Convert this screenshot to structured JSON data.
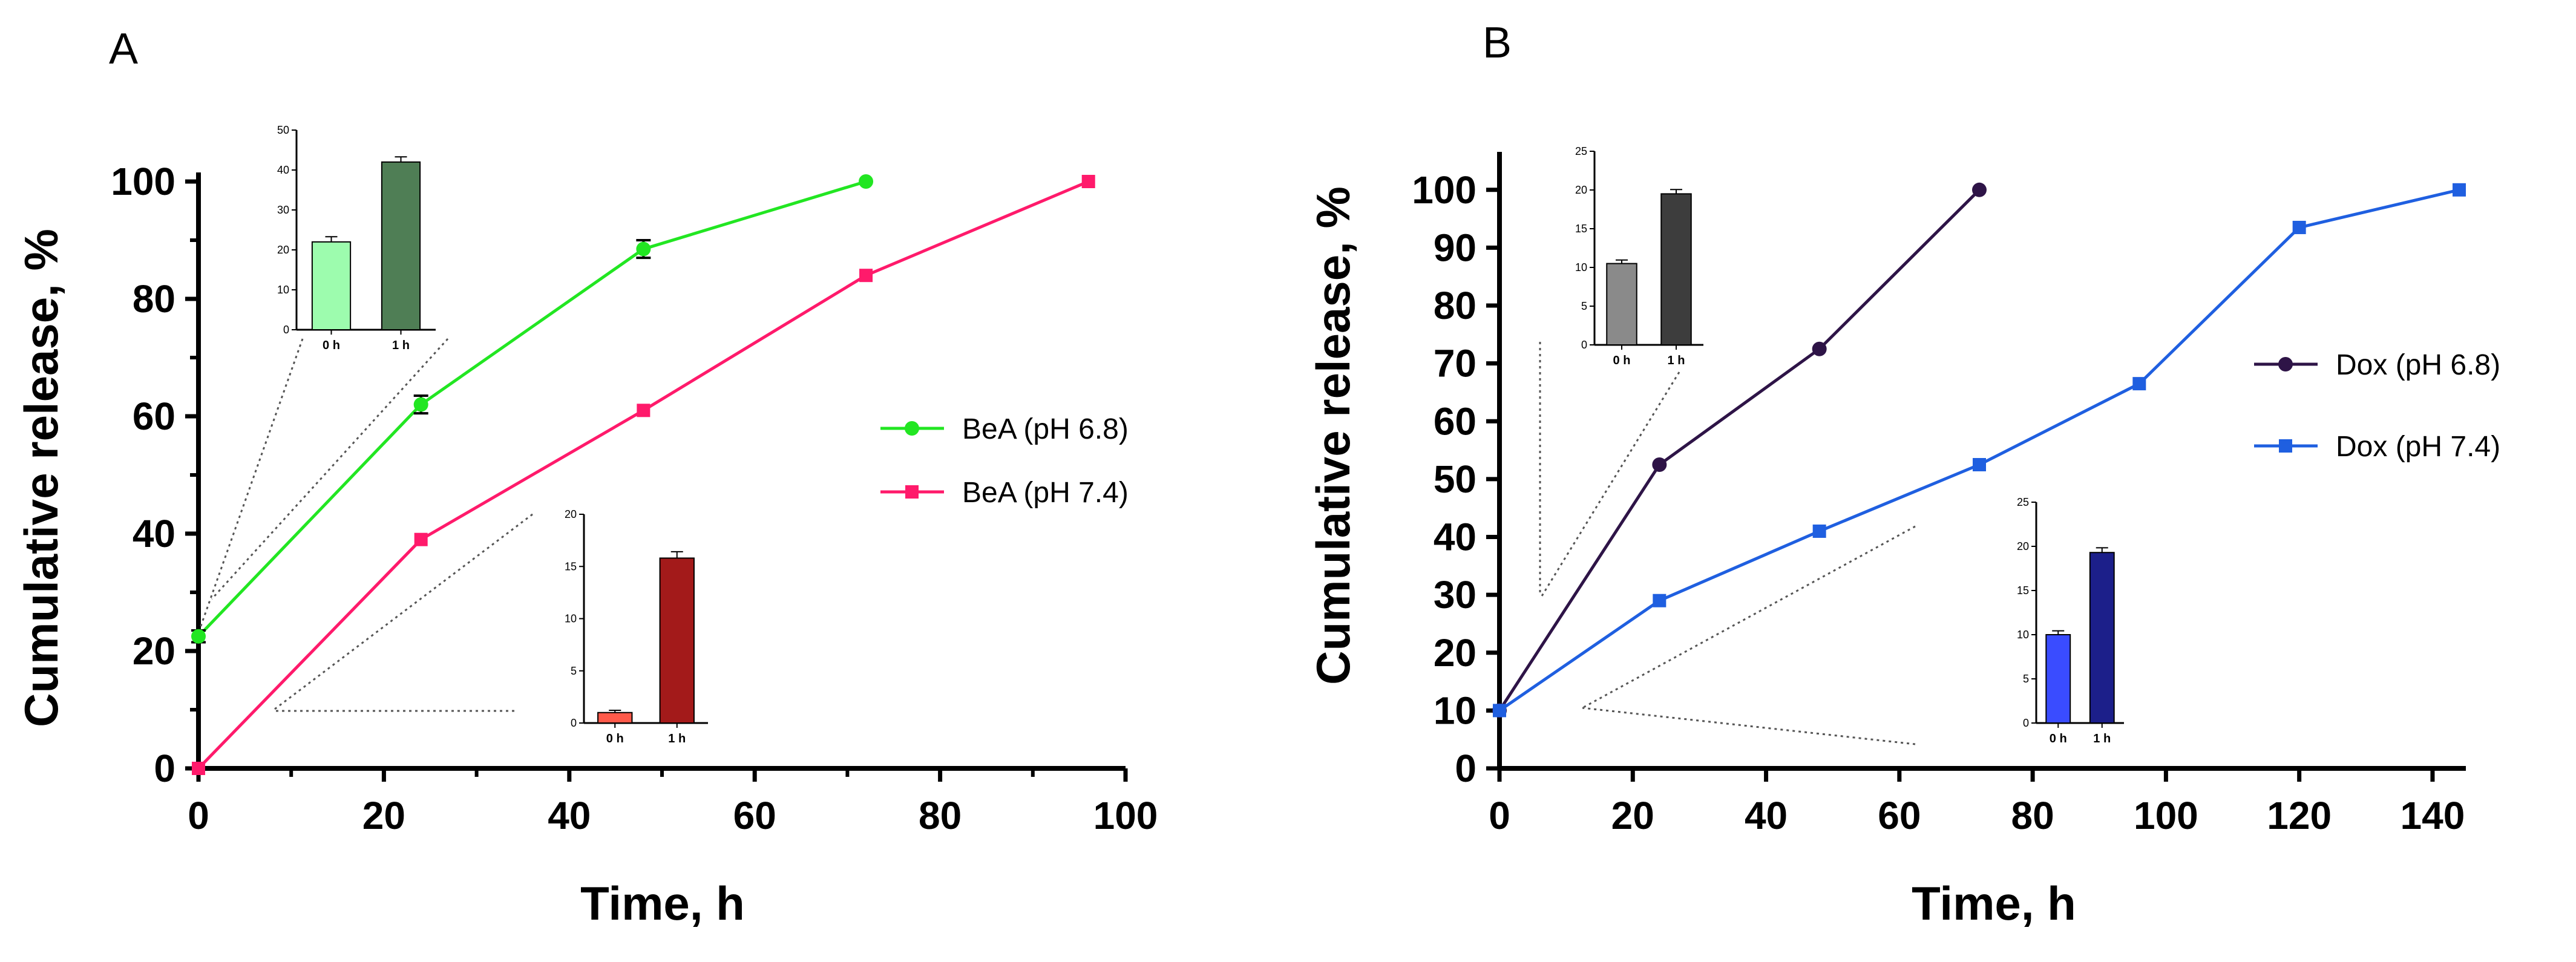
{
  "figure": {
    "panel_labels": [
      "A",
      "B"
    ]
  },
  "chart_data": [
    {
      "type": "line",
      "panel": "A",
      "xlabel": "Time, h",
      "ylabel": "Cumulative release, %",
      "xlim": [
        0,
        100
      ],
      "ylim": [
        0,
        100
      ],
      "xticks": [
        0,
        20,
        40,
        60,
        80,
        100
      ],
      "yticks": [
        0,
        20,
        40,
        60,
        80,
        100
      ],
      "series": [
        {
          "name": "BeA (pH 6.8)",
          "color": "#22e622",
          "marker": "circle",
          "x": [
            0,
            24,
            48,
            72
          ],
          "y": [
            22.5,
            62,
            88.5,
            100
          ],
          "err": [
            1.0,
            1.5,
            1.5,
            0
          ]
        },
        {
          "name": "BeA (pH 7.4)",
          "color": "#ff1a6b",
          "marker": "square",
          "x": [
            0,
            24,
            48,
            72,
            96
          ],
          "y": [
            0,
            39,
            61,
            84,
            100
          ],
          "err": [
            0,
            0,
            0,
            0,
            0
          ]
        }
      ],
      "insets": [
        {
          "ymax": 50,
          "yticks": [
            0,
            10,
            20,
            30,
            40,
            50
          ],
          "categories": [
            "0 h",
            "1 h"
          ],
          "values": [
            22,
            42
          ],
          "err": [
            1,
            1
          ],
          "colors": [
            "#9dfcae",
            "#4f7e55"
          ]
        },
        {
          "ymax": 20,
          "yticks": [
            0,
            5,
            10,
            15,
            20
          ],
          "categories": [
            "0 h",
            "1 h"
          ],
          "values": [
            1,
            15.8
          ],
          "err": [
            0.1,
            0.5
          ],
          "colors": [
            "#ff5a4a",
            "#a31a1a"
          ]
        }
      ]
    },
    {
      "type": "line",
      "panel": "B",
      "xlabel": "Time, h",
      "ylabel": "Cumulative release, %",
      "xlim": [
        0,
        145
      ],
      "ylim": [
        0,
        105
      ],
      "xticks": [
        0,
        20,
        40,
        60,
        80,
        100,
        120,
        140
      ],
      "yticks": [
        0,
        10,
        20,
        30,
        40,
        50,
        60,
        70,
        80,
        90,
        100
      ],
      "series": [
        {
          "name": "Dox (pH 6.8)",
          "color": "#2e1447",
          "marker": "circle",
          "x": [
            0,
            24,
            48,
            72
          ],
          "y": [
            10,
            52.5,
            72.5,
            100
          ]
        },
        {
          "name": "Dox (pH 7.4)",
          "color": "#1f5fe0",
          "marker": "square",
          "x": [
            0,
            24,
            48,
            72,
            96,
            120,
            144
          ],
          "y": [
            10,
            29,
            41,
            52.5,
            66.5,
            93.5,
            100
          ]
        }
      ],
      "insets": [
        {
          "ymax": 25,
          "yticks": [
            0,
            5,
            10,
            15,
            20,
            25
          ],
          "categories": [
            "0 h",
            "1 h"
          ],
          "values": [
            10.5,
            19.5
          ],
          "err": [
            0.3,
            0.4
          ],
          "colors": [
            "#8a8a8a",
            "#3d3d3d"
          ]
        },
        {
          "ymax": 25,
          "yticks": [
            0,
            5,
            10,
            15,
            20,
            25
          ],
          "categories": [
            "0 h",
            "1 h"
          ],
          "values": [
            10,
            19.3
          ],
          "err": [
            0.3,
            0.4
          ],
          "colors": [
            "#3a4cff",
            "#1c1f8a"
          ]
        }
      ]
    }
  ]
}
